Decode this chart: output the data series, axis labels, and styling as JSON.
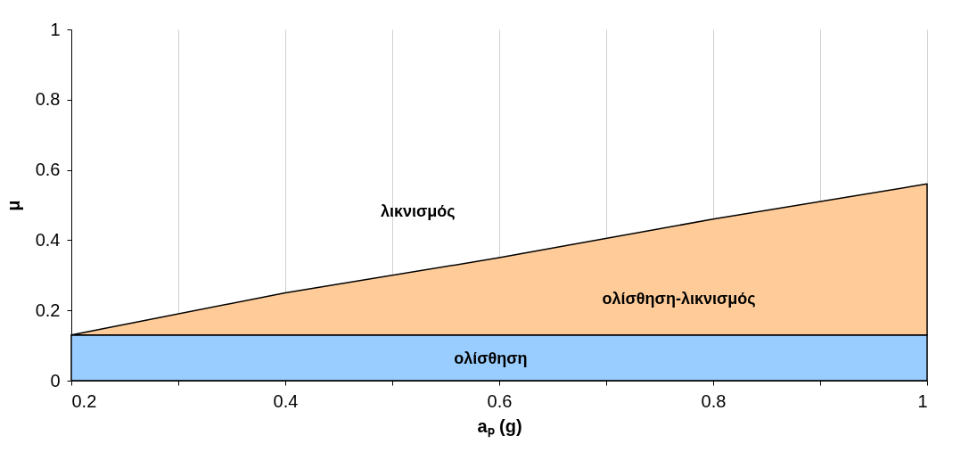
{
  "chart_data": {
    "type": "area",
    "stacked": true,
    "xlabel": "aₚ (g)",
    "ylabel": "μ",
    "x": [
      0.2,
      0.4,
      0.6,
      0.8,
      1.0
    ],
    "series": [
      {
        "color": "#99ccff",
        "values": [
          0.13,
          0.13,
          0.13,
          0.13,
          0.13
        ]
      },
      {
        "color": "#ffcc99",
        "values": [
          0,
          0.12,
          0.22,
          0.33,
          0.43
        ]
      }
    ],
    "xlim": [
      0.2,
      1
    ],
    "xticks": [
      0.2,
      {
        "value": 0.3,
        "label": null
      },
      0.4,
      {
        "value": 0.5,
        "label": null
      },
      0.6,
      {
        "value": 0.7,
        "label": null
      },
      0.8,
      {
        "value": 0.9,
        "label": null
      },
      1
    ],
    "ylim": [
      0,
      1
    ],
    "yticks": [
      0,
      0.2,
      0.4,
      0.6,
      0.8,
      1
    ],
    "grid": "x",
    "annotations": [
      "λικνισμός",
      "ολίσθηση-λικνισμός",
      "ολίσθηση"
    ]
  }
}
